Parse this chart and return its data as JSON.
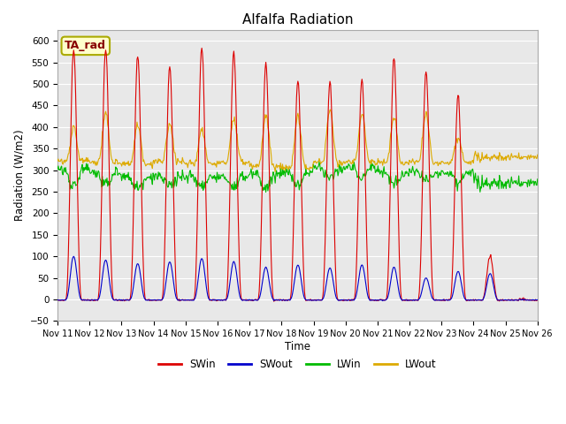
{
  "title": "Alfalfa Radiation",
  "xlabel": "Time",
  "ylabel": "Radiation (W/m2)",
  "ylim": [
    -50,
    625
  ],
  "yticks": [
    -50,
    0,
    50,
    100,
    150,
    200,
    250,
    300,
    350,
    400,
    450,
    500,
    550,
    600
  ],
  "annotation": "TA_rad",
  "colors": {
    "SWin": "#dd0000",
    "SWout": "#0000cc",
    "LWin": "#00bb00",
    "LWout": "#ddaa00"
  },
  "bg_color": "#e8e8e8",
  "n_days": 15,
  "start_day": 11,
  "figsize": [
    6.4,
    4.8
  ],
  "dpi": 100,
  "pts_per_day": 48,
  "swin_peaks": [
    580,
    585,
    565,
    540,
    585,
    575,
    548,
    510,
    505,
    510,
    560,
    530,
    475,
    100,
    0
  ],
  "swout_peaks": [
    100,
    92,
    83,
    87,
    95,
    88,
    75,
    80,
    73,
    80,
    75,
    50,
    65,
    60,
    0
  ],
  "lwin_base": [
    300,
    295,
    285,
    285,
    285,
    285,
    290,
    295,
    305,
    305,
    295,
    295,
    295,
    270,
    270
  ],
  "lwout_base": [
    320,
    318,
    315,
    320,
    315,
    318,
    308,
    305,
    318,
    318,
    318,
    318,
    318,
    330,
    330
  ],
  "lwout_peak_add": [
    80,
    110,
    90,
    85,
    80,
    100,
    120,
    120,
    120,
    115,
    105,
    110,
    60,
    0,
    0
  ],
  "lwin_dip": [
    35,
    30,
    25,
    20,
    20,
    25,
    30,
    30,
    25,
    20,
    25,
    20,
    20,
    0,
    0
  ]
}
